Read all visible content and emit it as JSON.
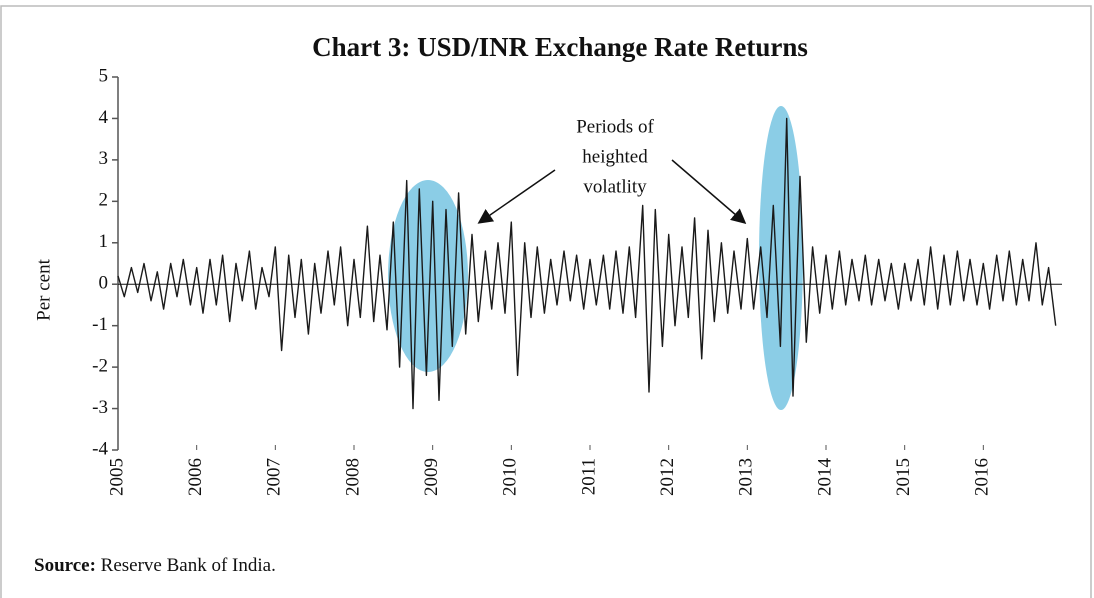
{
  "chart_data": {
    "type": "line",
    "title": "Chart 3: USD/INR Exchange Rate Returns",
    "y_label": "Per cent",
    "annotation": [
      "Periods of",
      "heighted",
      "volatlity"
    ],
    "source_label": "Source:",
    "source": "Reserve Bank of India.",
    "color": "#1a1a1a",
    "xlim": [
      2005,
      2017
    ],
    "xticks": [
      2005,
      2006,
      2007,
      2008,
      2009,
      2010,
      2011,
      2012,
      2013,
      2014,
      2015,
      2016
    ],
    "ylim": [
      -4,
      5
    ],
    "yticks": [
      -4,
      -3,
      -2,
      -1,
      0,
      1,
      2,
      3,
      4,
      5
    ],
    "x": [
      2005.0,
      2005.08,
      2005.17,
      2005.25,
      2005.33,
      2005.42,
      2005.5,
      2005.58,
      2005.67,
      2005.75,
      2005.83,
      2005.92,
      2006.0,
      2006.08,
      2006.17,
      2006.25,
      2006.33,
      2006.42,
      2006.5,
      2006.58,
      2006.67,
      2006.75,
      2006.83,
      2006.92,
      2007.0,
      2007.08,
      2007.17,
      2007.25,
      2007.33,
      2007.42,
      2007.5,
      2007.58,
      2007.67,
      2007.75,
      2007.83,
      2007.92,
      2008.0,
      2008.08,
      2008.17,
      2008.25,
      2008.33,
      2008.42,
      2008.5,
      2008.58,
      2008.67,
      2008.75,
      2008.83,
      2008.92,
      2009.0,
      2009.08,
      2009.17,
      2009.25,
      2009.33,
      2009.42,
      2009.5,
      2009.58,
      2009.67,
      2009.75,
      2009.83,
      2009.92,
      2010.0,
      2010.08,
      2010.17,
      2010.25,
      2010.33,
      2010.42,
      2010.5,
      2010.58,
      2010.67,
      2010.75,
      2010.83,
      2010.92,
      2011.0,
      2011.08,
      2011.17,
      2011.25,
      2011.33,
      2011.42,
      2011.5,
      2011.58,
      2011.67,
      2011.75,
      2011.83,
      2011.92,
      2012.0,
      2012.08,
      2012.17,
      2012.25,
      2012.33,
      2012.42,
      2012.5,
      2012.58,
      2012.67,
      2012.75,
      2012.83,
      2012.92,
      2013.0,
      2013.08,
      2013.17,
      2013.25,
      2013.33,
      2013.42,
      2013.5,
      2013.58,
      2013.67,
      2013.75,
      2013.83,
      2013.92,
      2014.0,
      2014.08,
      2014.17,
      2014.25,
      2014.33,
      2014.42,
      2014.5,
      2014.58,
      2014.67,
      2014.75,
      2014.83,
      2014.92,
      2015.0,
      2015.08,
      2015.17,
      2015.25,
      2015.33,
      2015.42,
      2015.5,
      2015.58,
      2015.67,
      2015.75,
      2015.83,
      2015.92,
      2016.0,
      2016.08,
      2016.17,
      2016.25,
      2016.33,
      2016.42,
      2016.5,
      2016.58,
      2016.67,
      2016.75,
      2016.83,
      2016.92
    ],
    "values": [
      0.2,
      -0.3,
      0.4,
      -0.2,
      0.5,
      -0.4,
      0.3,
      -0.6,
      0.5,
      -0.3,
      0.6,
      -0.5,
      0.4,
      -0.7,
      0.6,
      -0.5,
      0.7,
      -0.9,
      0.5,
      -0.4,
      0.8,
      -0.6,
      0.4,
      -0.3,
      0.9,
      -1.6,
      0.7,
      -0.8,
      0.6,
      -1.2,
      0.5,
      -0.7,
      0.8,
      -0.5,
      0.9,
      -1.0,
      0.6,
      -0.8,
      1.4,
      -0.9,
      0.7,
      -1.1,
      1.5,
      -2.0,
      2.5,
      -3.0,
      2.3,
      -2.2,
      2.0,
      -2.8,
      1.8,
      -1.5,
      2.2,
      -1.2,
      1.2,
      -0.9,
      0.8,
      -0.6,
      1.0,
      -0.7,
      1.5,
      -2.2,
      1.0,
      -0.8,
      0.9,
      -0.7,
      0.6,
      -0.5,
      0.8,
      -0.4,
      0.7,
      -0.6,
      0.6,
      -0.5,
      0.7,
      -0.6,
      0.8,
      -0.7,
      0.9,
      -0.8,
      1.9,
      -2.6,
      1.8,
      -1.5,
      1.2,
      -1.0,
      0.9,
      -0.8,
      1.6,
      -1.8,
      1.3,
      -0.9,
      1.0,
      -0.7,
      0.8,
      -0.6,
      1.1,
      -0.6,
      0.9,
      -0.8,
      1.9,
      -1.5,
      4.0,
      -2.7,
      2.6,
      -1.4,
      0.9,
      -0.7,
      0.7,
      -0.6,
      0.8,
      -0.5,
      0.6,
      -0.4,
      0.7,
      -0.5,
      0.6,
      -0.4,
      0.5,
      -0.6,
      0.5,
      -0.4,
      0.6,
      -0.5,
      0.9,
      -0.6,
      0.7,
      -0.5,
      0.8,
      -0.4,
      0.6,
      -0.5,
      0.5,
      -0.6,
      0.7,
      -0.4,
      0.8,
      -0.5,
      0.6,
      -0.4,
      1.0,
      -0.5,
      0.4,
      -1.0
    ]
  }
}
